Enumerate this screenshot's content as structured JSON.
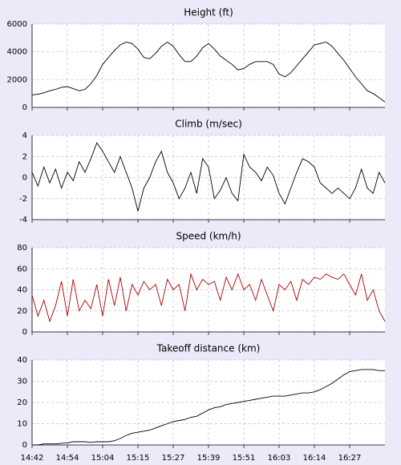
{
  "chart_data": [
    {
      "type": "line",
      "title": "Height (ft)",
      "color": "#000000",
      "ylim": [
        0,
        6000
      ],
      "yticks": [
        0,
        2000,
        4000,
        6000
      ],
      "grid": true,
      "values": [
        900,
        950,
        1050,
        1200,
        1300,
        1450,
        1500,
        1350,
        1200,
        1300,
        1700,
        2300,
        3100,
        3600,
        4100,
        4500,
        4700,
        4600,
        4200,
        3600,
        3500,
        3900,
        4400,
        4700,
        4400,
        3800,
        3300,
        3300,
        3700,
        4300,
        4600,
        4200,
        3700,
        3400,
        3100,
        2700,
        2800,
        3100,
        3300,
        3300,
        3300,
        3100,
        2400,
        2200,
        2500,
        3000,
        3500,
        4000,
        4500,
        4600,
        4700,
        4400,
        3900,
        3400,
        2800,
        2200,
        1700,
        1200,
        1000,
        700,
        400
      ]
    },
    {
      "type": "line",
      "title": "Climb (m/sec)",
      "color": "#000000",
      "ylim": [
        -4,
        4
      ],
      "yticks": [
        -4,
        -2,
        0,
        2,
        4
      ],
      "grid": true,
      "values": [
        0.5,
        -0.8,
        1,
        -0.5,
        0.8,
        -1,
        0.5,
        -0.3,
        1.5,
        0.5,
        1.8,
        3.3,
        2.5,
        1.5,
        0.5,
        2,
        0.5,
        -1,
        -3.2,
        -1,
        0,
        1.5,
        2.5,
        0.5,
        -0.5,
        -2,
        -1,
        0.5,
        -1.5,
        1.8,
        1,
        -2,
        -1.2,
        0,
        -1.5,
        -2.2,
        2.2,
        1,
        0.5,
        -0.3,
        1,
        0.2,
        -1.5,
        -2.5,
        -1,
        0.5,
        1.8,
        1.5,
        1,
        -0.5,
        -1,
        -1.5,
        -1,
        -1.5,
        -2,
        -1,
        0.8,
        -1,
        -1.5,
        0.5,
        -0.5
      ]
    },
    {
      "type": "line",
      "title": "Speed (km/h)",
      "color": "#b00000",
      "ylim": [
        0,
        80
      ],
      "yticks": [
        0,
        20,
        40,
        60,
        80
      ],
      "grid": true,
      "values": [
        35,
        15,
        30,
        10,
        25,
        48,
        15,
        50,
        20,
        30,
        22,
        45,
        15,
        50,
        25,
        52,
        20,
        45,
        35,
        48,
        40,
        45,
        25,
        50,
        40,
        45,
        20,
        55,
        40,
        50,
        45,
        48,
        30,
        52,
        40,
        55,
        40,
        45,
        30,
        50,
        35,
        20,
        45,
        40,
        48,
        30,
        50,
        45,
        52,
        50,
        55,
        52,
        50,
        55,
        45,
        35,
        55,
        30,
        40,
        20,
        10
      ]
    },
    {
      "type": "line",
      "title": "Takeoff distance (km)",
      "color": "#000000",
      "ylim": [
        0,
        40
      ],
      "yticks": [
        0,
        10,
        20,
        30,
        40
      ],
      "grid": true,
      "categories": [
        "14:42",
        null,
        null,
        null,
        null,
        null,
        "14:54",
        null,
        null,
        null,
        null,
        null,
        "15:04",
        null,
        null,
        null,
        null,
        null,
        "15:15",
        null,
        null,
        null,
        null,
        null,
        "15:27",
        null,
        null,
        null,
        null,
        null,
        "15:39",
        null,
        null,
        null,
        null,
        null,
        "15:51",
        null,
        null,
        null,
        null,
        null,
        "16:03",
        null,
        null,
        null,
        null,
        null,
        "16:14",
        null,
        null,
        null,
        null,
        null,
        "16:27",
        null,
        null,
        null,
        null,
        null,
        null
      ],
      "values": [
        0,
        0,
        0.5,
        0.5,
        0.5,
        0.8,
        1,
        1.5,
        1.5,
        1.5,
        1.2,
        1.5,
        1.5,
        1.5,
        2,
        3,
        4.5,
        5.5,
        6,
        6.5,
        7,
        8,
        9,
        10,
        11,
        11.5,
        12,
        13,
        13.5,
        15,
        16.5,
        17.5,
        18,
        19,
        19.5,
        20,
        20.5,
        21,
        21.5,
        22,
        22.5,
        23,
        23,
        23,
        23.5,
        24,
        24.5,
        24.5,
        25,
        26,
        27.5,
        29,
        31,
        33,
        34.5,
        35,
        35.5,
        35.5,
        35.5,
        35,
        35
      ]
    }
  ]
}
